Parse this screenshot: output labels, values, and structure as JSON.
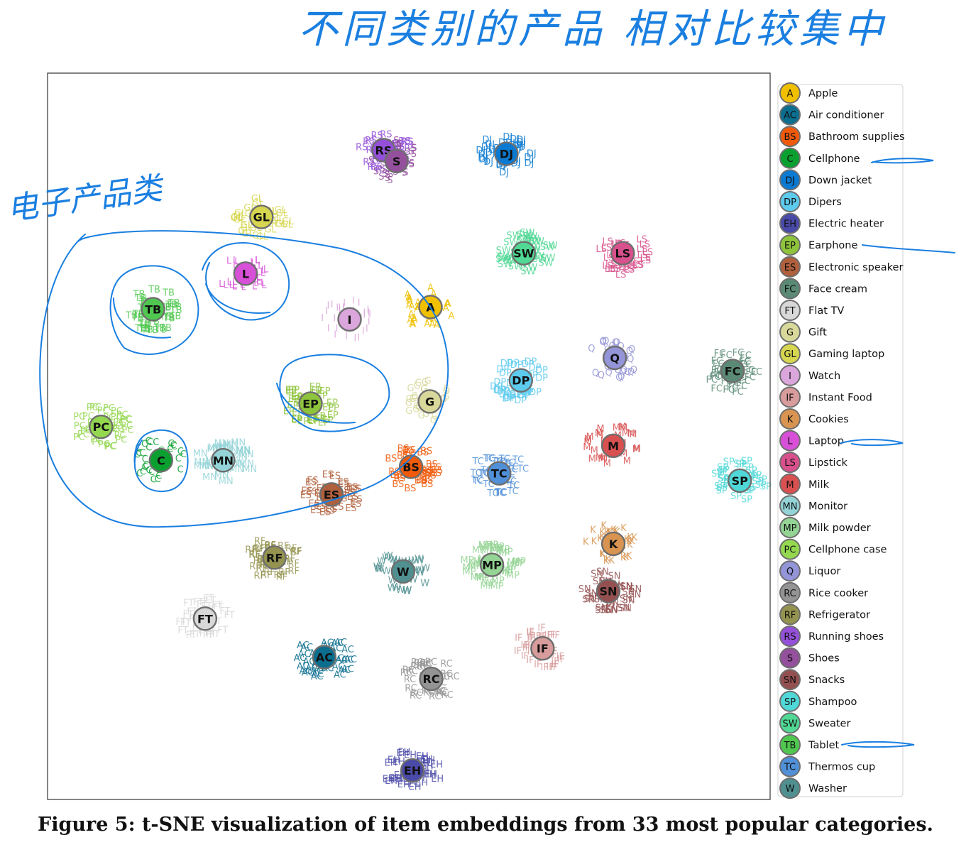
{
  "caption": "Figure 5: t-SNE visualization of item embeddings from 33 most popular categories.",
  "annotation_top": "不同类别的产品 相对比较集中",
  "annotation_left": "电子产品类",
  "chart_data": {
    "type": "scatter",
    "title": "",
    "xlabel": "",
    "ylabel": "",
    "grid": false,
    "legend_position": "right",
    "legend": [
      {
        "code": "A",
        "name": "Apple",
        "color": "#f0c000"
      },
      {
        "code": "AC",
        "name": "Air conditioner",
        "color": "#0b6e8f"
      },
      {
        "code": "BS",
        "name": "Bathroom supplies",
        "color": "#f05a0a"
      },
      {
        "code": "C",
        "name": "Cellphone",
        "color": "#0aa030",
        "underline": true
      },
      {
        "code": "DJ",
        "name": "Down jacket",
        "color": "#0a7ad2"
      },
      {
        "code": "DP",
        "name": "Dipers",
        "color": "#5ccbee"
      },
      {
        "code": "EH",
        "name": "Electric heater",
        "color": "#4a4aa8"
      },
      {
        "code": "EP",
        "name": "Earphone",
        "color": "#8ec43c",
        "underline": true
      },
      {
        "code": "ES",
        "name": "Electronic speaker",
        "color": "#b0603c"
      },
      {
        "code": "FC",
        "name": "Face cream",
        "color": "#5a8a76"
      },
      {
        "code": "FT",
        "name": "Flat TV",
        "color": "#d8d8d8"
      },
      {
        "code": "G",
        "name": "Gift",
        "color": "#d8d89a"
      },
      {
        "code": "GL",
        "name": "Gaming laptop",
        "color": "#d6d650"
      },
      {
        "code": "I",
        "name": "Watch",
        "color": "#dba6dc"
      },
      {
        "code": "IF",
        "name": "Instant Food",
        "color": "#d89c9c"
      },
      {
        "code": "K",
        "name": "Cookies",
        "color": "#d89450"
      },
      {
        "code": "L",
        "name": "Laptop",
        "color": "#d850d8",
        "underline": true
      },
      {
        "code": "LS",
        "name": "Lipstick",
        "color": "#d8508c"
      },
      {
        "code": "M",
        "name": "Milk",
        "color": "#d85050"
      },
      {
        "code": "MN",
        "name": "Monitor",
        "color": "#94d4d8"
      },
      {
        "code": "MP",
        "name": "Milk powder",
        "color": "#94d494"
      },
      {
        "code": "PC",
        "name": "Cellphone case",
        "color": "#94d850"
      },
      {
        "code": "Q",
        "name": "Liquor",
        "color": "#9494d8"
      },
      {
        "code": "RC",
        "name": "Rice cooker",
        "color": "#949494"
      },
      {
        "code": "RF",
        "name": "Refrigerator",
        "color": "#949450"
      },
      {
        "code": "RS",
        "name": "Running shoes",
        "color": "#9450d8"
      },
      {
        "code": "S",
        "name": "Shoes",
        "color": "#94509c"
      },
      {
        "code": "SN",
        "name": "Snacks",
        "color": "#945050"
      },
      {
        "code": "SP",
        "name": "Shampoo",
        "color": "#50d8d8"
      },
      {
        "code": "SW",
        "name": "Sweater",
        "color": "#50d894"
      },
      {
        "code": "TB",
        "name": "Tablet",
        "color": "#50c850",
        "underline": true
      },
      {
        "code": "TC",
        "name": "Thermos cup",
        "color": "#5090d8"
      },
      {
        "code": "W",
        "name": "Washer",
        "color": "#509090"
      }
    ],
    "centroids": [
      {
        "code": "RS",
        "x": 0.465,
        "y": 0.106
      },
      {
        "code": "S",
        "x": 0.483,
        "y": 0.121
      },
      {
        "code": "DJ",
        "x": 0.635,
        "y": 0.111
      },
      {
        "code": "GL",
        "x": 0.296,
        "y": 0.198
      },
      {
        "code": "SW",
        "x": 0.659,
        "y": 0.248
      },
      {
        "code": "LS",
        "x": 0.796,
        "y": 0.248
      },
      {
        "code": "L",
        "x": 0.274,
        "y": 0.276
      },
      {
        "code": "TB",
        "x": 0.146,
        "y": 0.325
      },
      {
        "code": "I",
        "x": 0.418,
        "y": 0.339
      },
      {
        "code": "A",
        "x": 0.53,
        "y": 0.322
      },
      {
        "code": "Q",
        "x": 0.785,
        "y": 0.392
      },
      {
        "code": "DP",
        "x": 0.655,
        "y": 0.423
      },
      {
        "code": "FC",
        "x": 0.948,
        "y": 0.41
      },
      {
        "code": "EP",
        "x": 0.364,
        "y": 0.455
      },
      {
        "code": "G",
        "x": 0.529,
        "y": 0.452
      },
      {
        "code": "PC",
        "x": 0.074,
        "y": 0.487
      },
      {
        "code": "M",
        "x": 0.783,
        "y": 0.513
      },
      {
        "code": "C",
        "x": 0.157,
        "y": 0.533
      },
      {
        "code": "MN",
        "x": 0.243,
        "y": 0.533
      },
      {
        "code": "BS",
        "x": 0.503,
        "y": 0.542
      },
      {
        "code": "TC",
        "x": 0.625,
        "y": 0.551
      },
      {
        "code": "SP",
        "x": 0.958,
        "y": 0.561
      },
      {
        "code": "ES",
        "x": 0.393,
        "y": 0.58
      },
      {
        "code": "K",
        "x": 0.783,
        "y": 0.648
      },
      {
        "code": "RF",
        "x": 0.314,
        "y": 0.667
      },
      {
        "code": "W",
        "x": 0.492,
        "y": 0.686
      },
      {
        "code": "MP",
        "x": 0.615,
        "y": 0.677
      },
      {
        "code": "SN",
        "x": 0.776,
        "y": 0.713
      },
      {
        "code": "FT",
        "x": 0.218,
        "y": 0.751
      },
      {
        "code": "IF",
        "x": 0.685,
        "y": 0.792
      },
      {
        "code": "AC",
        "x": 0.383,
        "y": 0.804
      },
      {
        "code": "RC",
        "x": 0.531,
        "y": 0.834
      },
      {
        "code": "EH",
        "x": 0.505,
        "y": 0.96
      }
    ],
    "xlim": [
      0,
      1
    ],
    "ylim": [
      0,
      1
    ]
  }
}
